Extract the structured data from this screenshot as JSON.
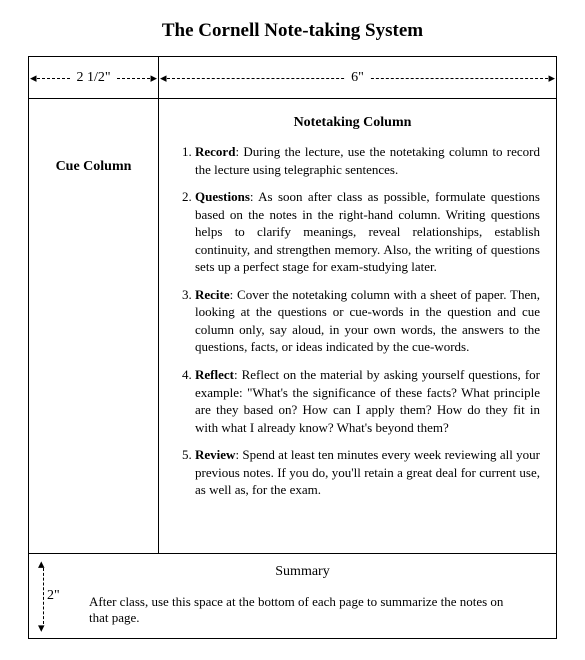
{
  "title": "The Cornell Note-taking System",
  "dimensions": {
    "cue_width": "2 1/2\"",
    "note_width": "6\"",
    "summary_height": "2\""
  },
  "cue": {
    "heading": "Cue Column"
  },
  "notes": {
    "heading": "Notetaking Column",
    "items": [
      {
        "term": "Record",
        "desc": ": During the lecture, use the notetaking column to record the lecture using telegraphic sentences."
      },
      {
        "term": "Questions",
        "desc": ":  As soon after class as possible, formulate questions based on the notes in the right-hand column.  Writing questions helps to clarify meanings, reveal relationships, establish continuity, and strengthen memory.  Also, the writing of questions sets up a perfect stage for exam-studying later."
      },
      {
        "term": "Recite",
        "desc": ":  Cover the notetaking column with a sheet of paper.  Then, looking at the questions or cue-words in the question and cue column only, say aloud, in your own words, the answers to the questions, facts, or ideas indicated by the cue-words."
      },
      {
        "term": "Reflect",
        "desc": ":  Reflect on the material by asking yourself questions, for example: \"What's the significance of these facts?  What principle are they based on?  How can I apply them?  How do they fit in with what I already know?  What's beyond them?"
      },
      {
        "term": "Review",
        "desc": ": Spend at least ten minutes every week reviewing all your previous notes.  If you do, you'll retain a great deal for current use, as well as, for the exam."
      }
    ]
  },
  "summary": {
    "heading": "Summary",
    "text": "After class, use this space at the bottom of each page to summarize the notes on that page."
  }
}
